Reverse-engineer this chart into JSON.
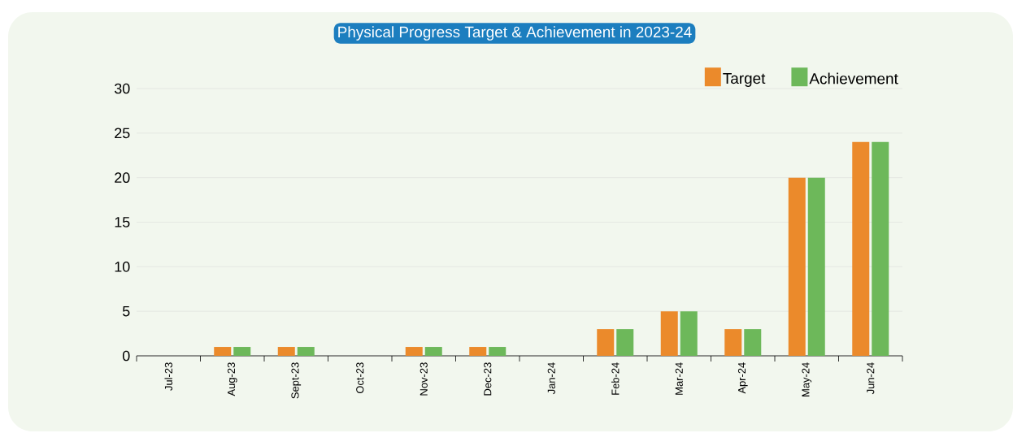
{
  "chart_data": {
    "type": "bar",
    "title": "Physical Progress Target & Achievement in 2023-24",
    "categories": [
      "Jul-23",
      "Aug-23",
      "Sept-23",
      "Oct-23",
      "Nov-23",
      "Dec-23",
      "Jan-24",
      "Feb-24",
      "Mar-24",
      "Apr-24",
      "May-24",
      "Jun-24"
    ],
    "series": [
      {
        "name": "Target",
        "color": "#eb8a2b",
        "values": [
          0,
          1,
          1,
          0,
          1,
          1,
          0,
          3,
          5,
          3,
          20,
          24
        ]
      },
      {
        "name": "Achievement",
        "color": "#6db85a",
        "values": [
          0,
          1,
          1,
          0,
          1,
          1,
          0,
          3,
          5,
          3,
          20,
          24
        ]
      }
    ],
    "ylim": [
      0,
      30
    ],
    "yticks": [
      0,
      5,
      10,
      15,
      20,
      25,
      30
    ],
    "grid": "y",
    "legend": "top right"
  }
}
